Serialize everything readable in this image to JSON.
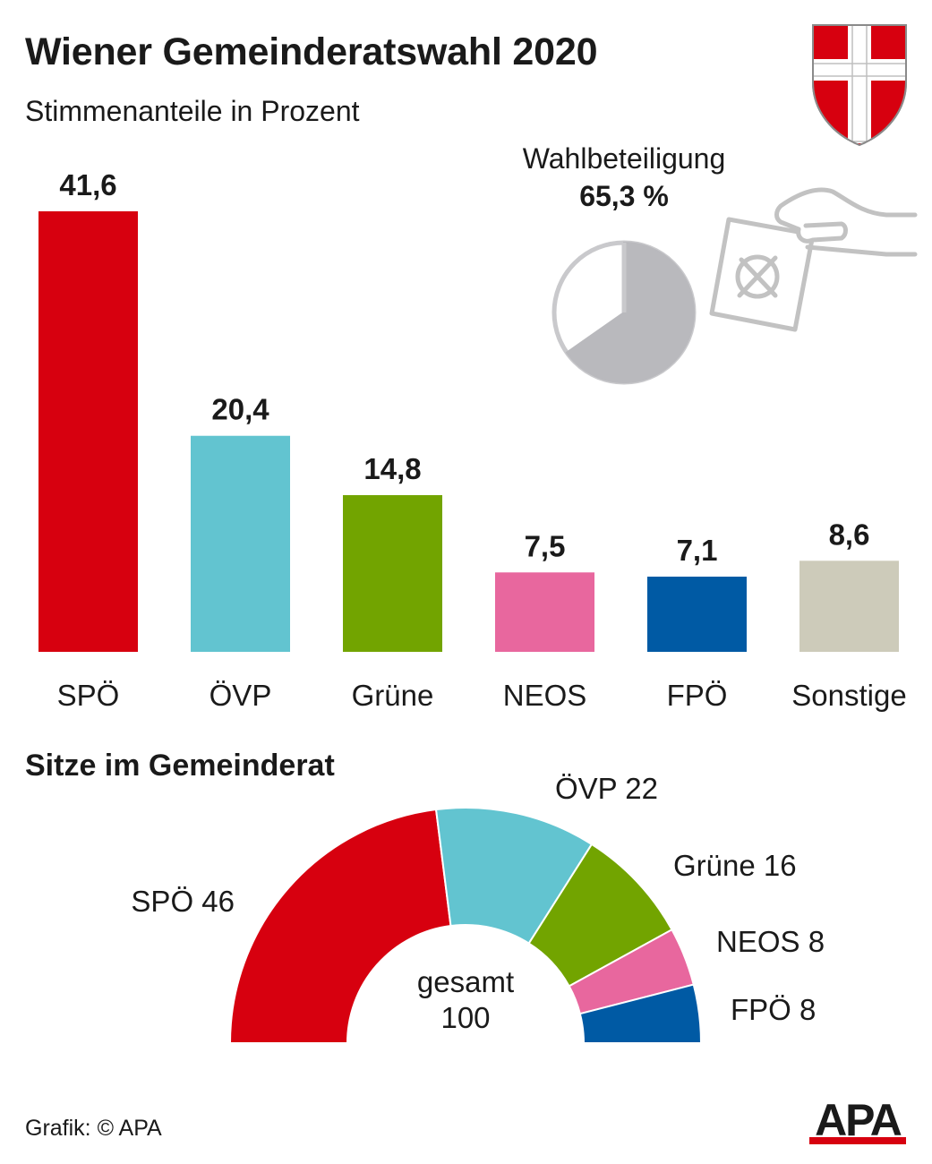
{
  "header": {
    "title": "Wiener Gemeinderatswahl 2020",
    "subtitle": "Stimmenanteile in Prozent"
  },
  "turnout": {
    "label": "Wahlbeteiligung",
    "value_text": "65,3 %",
    "value": 65.3,
    "color_filled": "#b9b9bd",
    "color_outline": "#c9c9cc"
  },
  "seats": {
    "title": "Sitze im Gemeinderat",
    "center_label_1": "gesamt",
    "center_label_2": "100"
  },
  "footer": {
    "credit": "Grafik: © APA",
    "logo_text": "APA"
  },
  "chart_data": [
    {
      "type": "bar",
      "categories": [
        "SPÖ",
        "ÖVP",
        "Grüne",
        "NEOS",
        "FPÖ",
        "Sonstige"
      ],
      "values": [
        41.6,
        20.4,
        14.8,
        7.5,
        7.1,
        8.6
      ],
      "value_labels": [
        "41,6",
        "20,4",
        "14,8",
        "7,5",
        "7,1",
        "8,6"
      ],
      "colors": [
        "#d7000f",
        "#62c4d0",
        "#72a400",
        "#e8679e",
        "#005aa4",
        "#cdcbba"
      ],
      "title": "Stimmenanteile in Prozent",
      "ylim": [
        0,
        41.6
      ],
      "grid": false
    },
    {
      "type": "pie",
      "title": "Wahlbeteiligung",
      "values": [
        65.3,
        34.7
      ],
      "value_label": "65,3 %"
    },
    {
      "type": "pie",
      "subtype": "half-donut",
      "title": "Sitze im Gemeinderat",
      "categories": [
        "SPÖ",
        "ÖVP",
        "Grüne",
        "NEOS",
        "FPÖ"
      ],
      "values": [
        46,
        22,
        16,
        8,
        8
      ],
      "labels": [
        "SPÖ 46",
        "ÖVP 22",
        "Grüne 16",
        "NEOS 8",
        "FPÖ 8"
      ],
      "colors": [
        "#d7000f",
        "#62c4d0",
        "#72a400",
        "#e8679e",
        "#005aa4"
      ],
      "total": 100
    }
  ]
}
